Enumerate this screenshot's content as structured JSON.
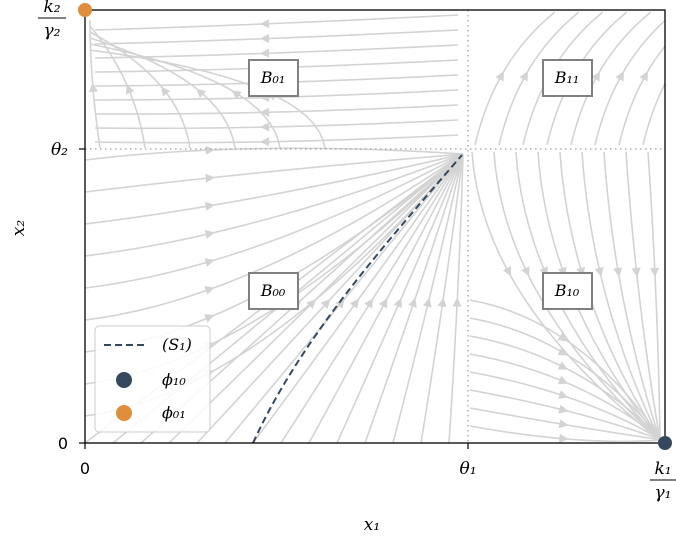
{
  "axes": {
    "x_label": "x₁",
    "y_label": "x₂",
    "x_ticks": [
      "0",
      "θ₁"
    ],
    "x_end_fraction": {
      "num": "k₁",
      "den": "γ₁"
    },
    "y_ticks": [
      "0",
      "θ₂"
    ],
    "y_end_fraction": {
      "num": "k₂",
      "den": "γ₂"
    }
  },
  "regions": [
    "B₀₁",
    "B₁₁",
    "B₀₀",
    "B₁₀"
  ],
  "legend": {
    "items": [
      {
        "label": "(S₁)",
        "kind": "dashed-line",
        "color": "#34495e"
      },
      {
        "label": "ϕ₁₀",
        "kind": "dot",
        "color": "#34495e"
      },
      {
        "label": "ϕ₀₁",
        "kind": "dot",
        "color": "#e08e3c"
      }
    ]
  },
  "colors": {
    "streamline": "#d3d3d3",
    "separatrix": "#34495e",
    "phi10": "#34495e",
    "phi01": "#e08e3c",
    "threshold": "#a0a0a0"
  }
}
